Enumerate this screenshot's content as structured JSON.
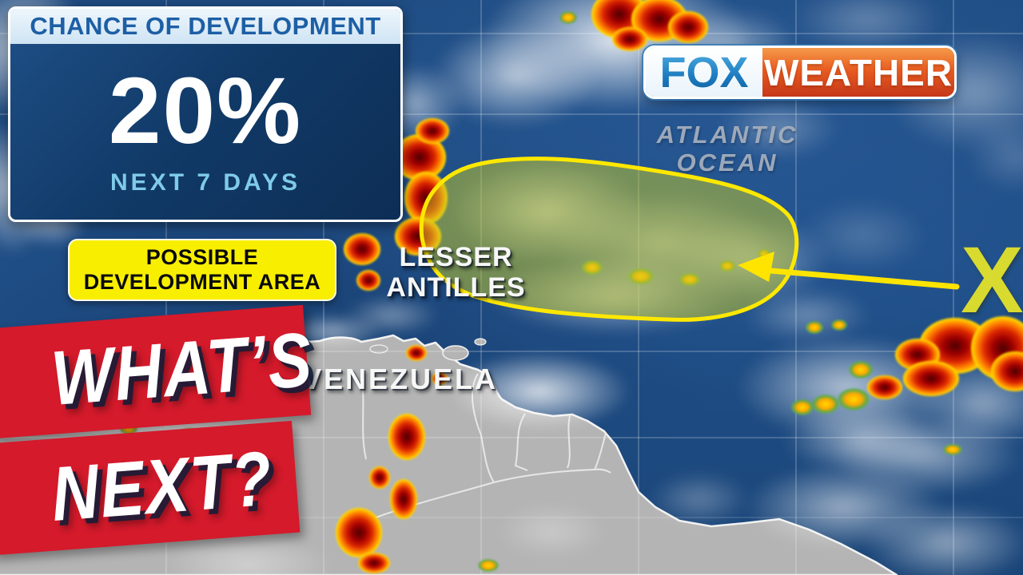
{
  "development_panel": {
    "header": "CHANCE OF DEVELOPMENT",
    "percent": "20%",
    "period": "NEXT 7 DAYS"
  },
  "development_area_tag": {
    "line1": "POSSIBLE",
    "line2": "DEVELOPMENT AREA"
  },
  "headline_banner": {
    "line1": "WHAT’S",
    "line2": "NEXT?"
  },
  "brand": {
    "network": "FOX",
    "product": "WEATHER"
  },
  "map_labels": {
    "ocean_line1": "ATLANTIC",
    "ocean_line2": "OCEAN",
    "islands_line1": "LESSER",
    "islands_line2": "ANTILLES",
    "country": "VENEZUELA",
    "x_marker": "X"
  },
  "colors": {
    "panel_header_text": "#1d5fa5",
    "panel_navy": "#113a68",
    "period_text": "#7fcbe8",
    "highlight_yellow": "#f8ee00",
    "banner_red": "#d41a2b",
    "dev_area_stroke": "#ffe800",
    "x_yellow": "#d9da2f",
    "ocean_blue": "#1d4a80",
    "land_gray": "#b4b4b4",
    "fox_blue": "#1e7ec1",
    "weather_orange": "#e85c20"
  }
}
